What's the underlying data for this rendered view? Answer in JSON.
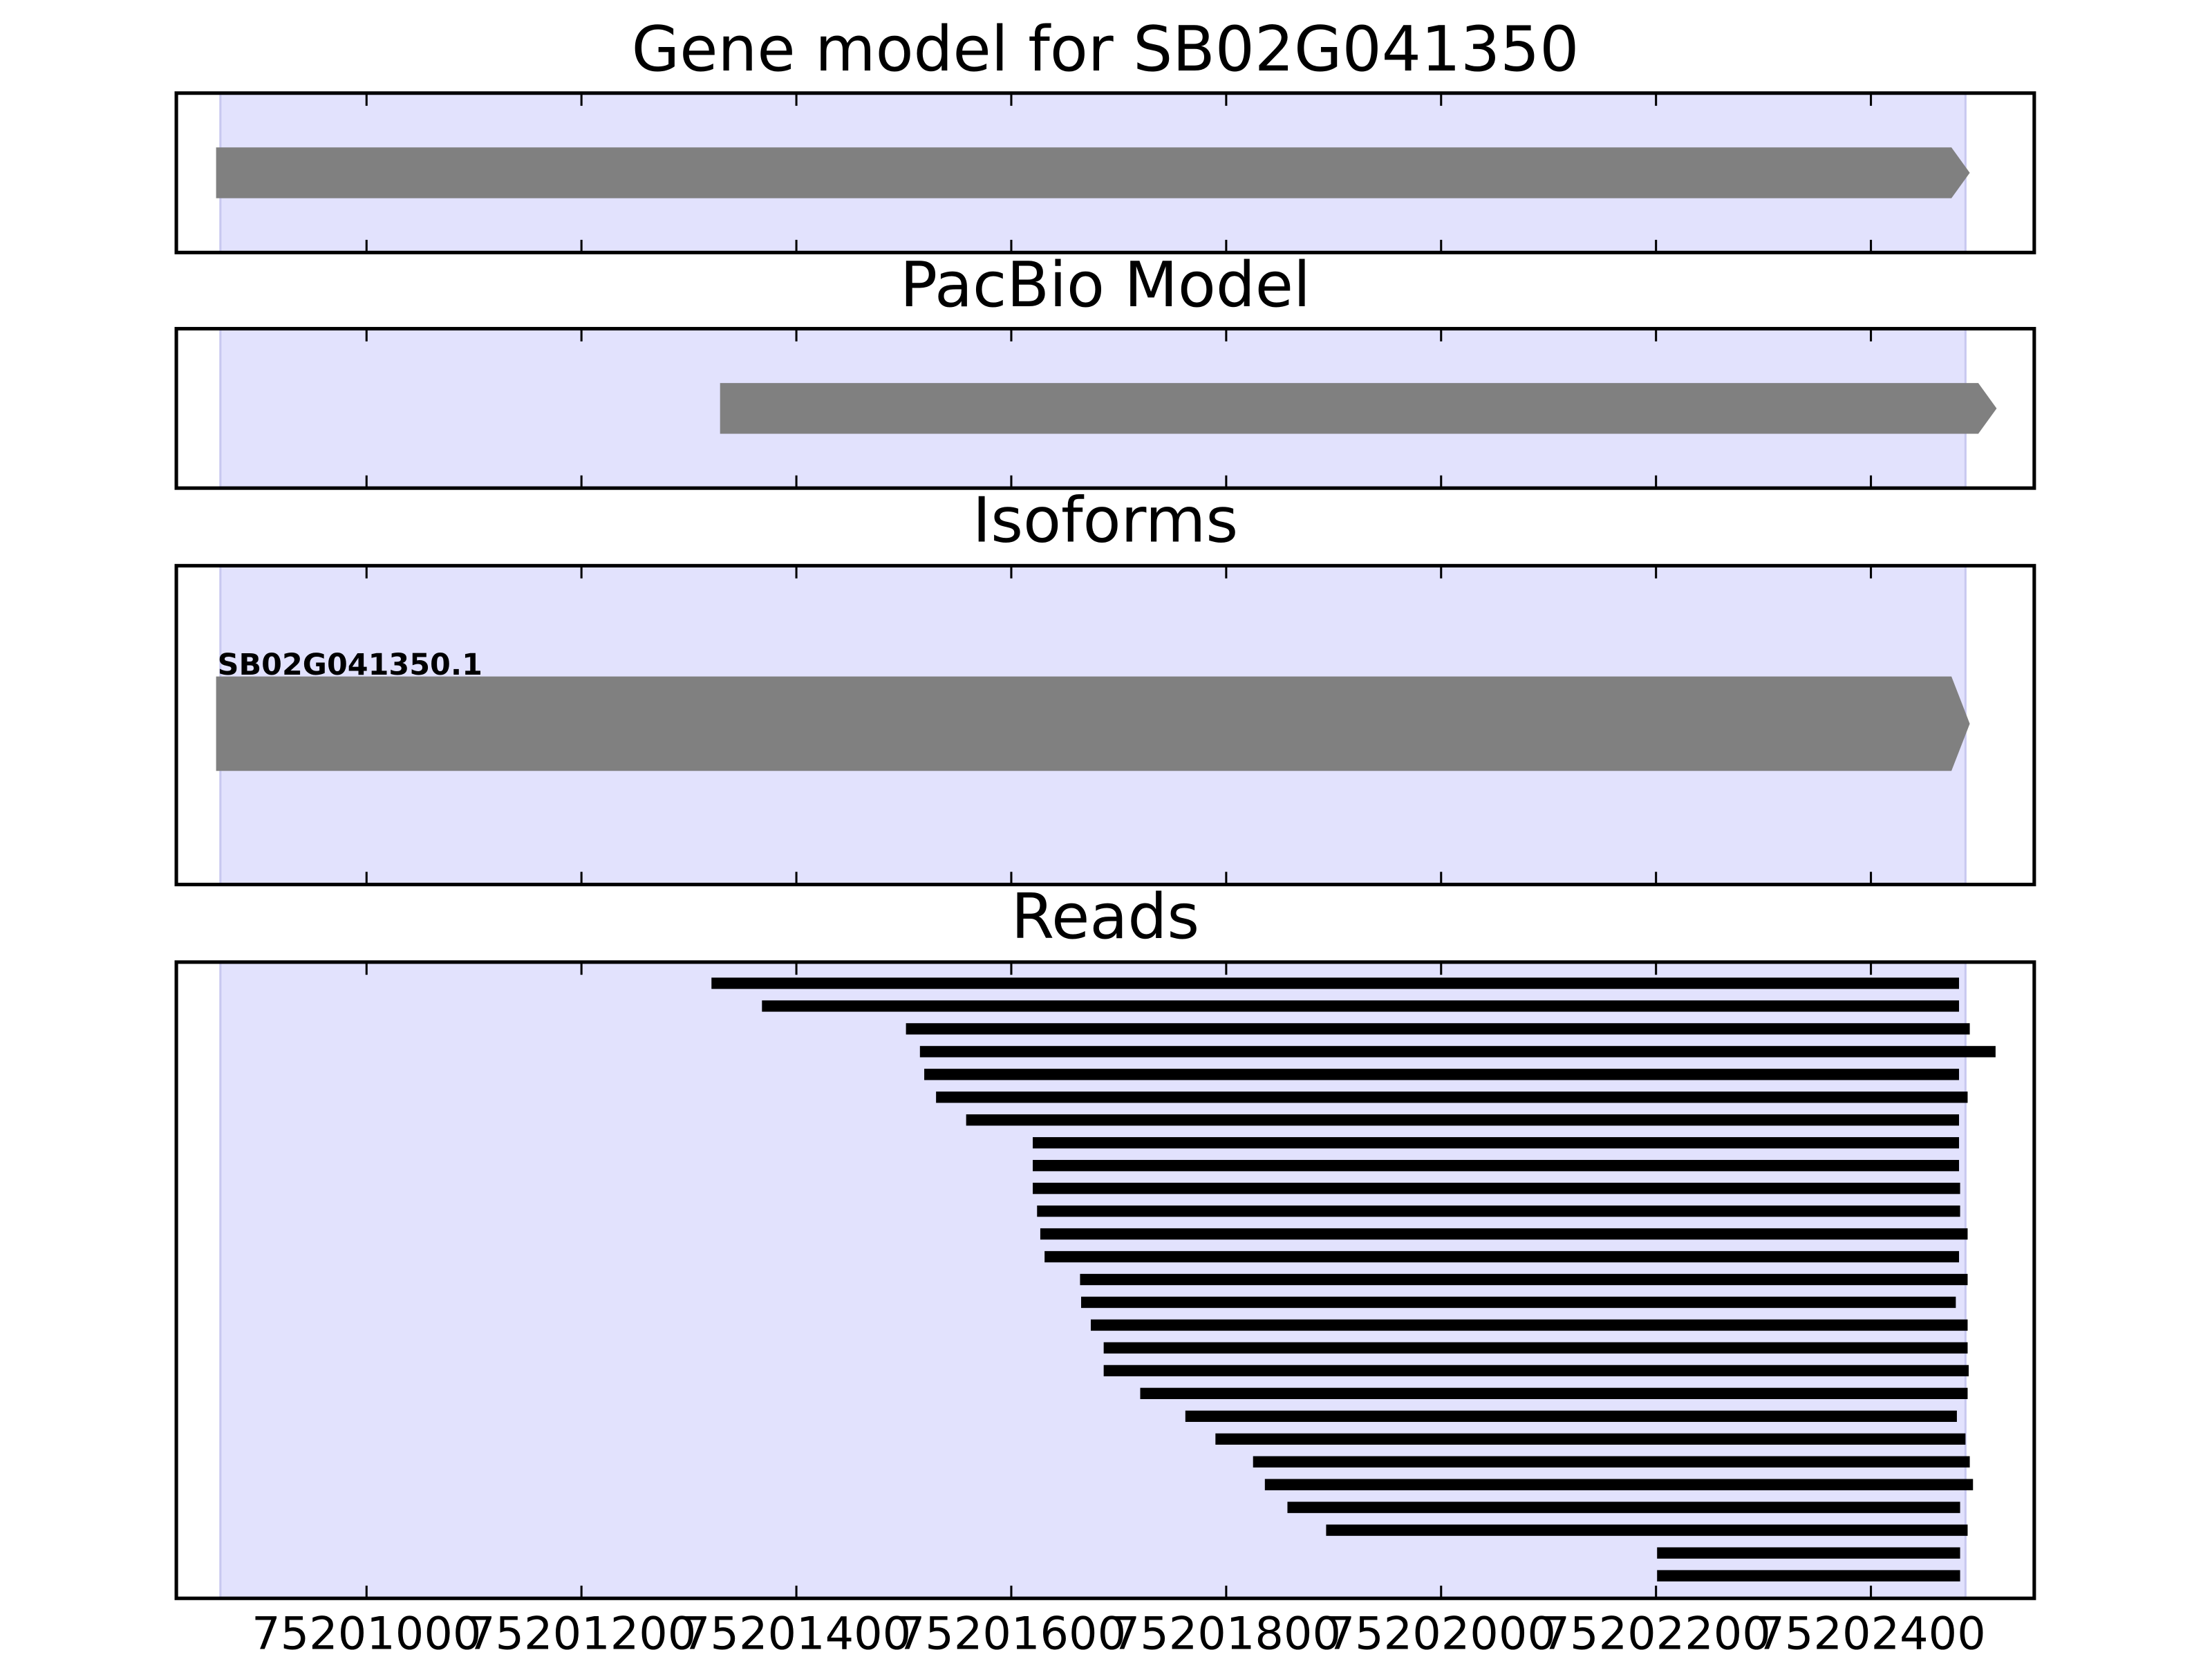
{
  "chart_data": {
    "type": "gene-tracks",
    "xlim": [
      75200823,
      75202552
    ],
    "xticks": [
      75201000,
      75201200,
      75201400,
      75201600,
      75201800,
      75202000,
      75202200,
      75202400
    ],
    "highlight": [
      75200864,
      75202488
    ],
    "panels": [
      {
        "type": "feature",
        "title": "Gene model for SB02G041350",
        "starts": [
          75200860
        ],
        "ends": [
          75202492
        ]
      },
      {
        "type": "feature",
        "title": "PacBio Model",
        "starts": [
          75201329
        ],
        "ends": [
          75202517
        ]
      },
      {
        "type": "feature",
        "title": "Isoforms",
        "labels": [
          "SB02G041350.1"
        ],
        "starts": [
          75200860
        ],
        "ends": [
          75202492
        ]
      },
      {
        "type": "reads",
        "title": "Reads",
        "starts": [
          75201321,
          75201368,
          75201502,
          75201515,
          75201519,
          75201530,
          75201558,
          75201620,
          75201620,
          75201620,
          75201624,
          75201627,
          75201631,
          75201664,
          75201665,
          75201674,
          75201686,
          75201686,
          75201720,
          75201762,
          75201790,
          75201825,
          75201836,
          75201857,
          75201893,
          75202201,
          75202201
        ],
        "ends": [
          75202482,
          75202482,
          75202492,
          75202516,
          75202482,
          75202490,
          75202482,
          75202482,
          75202482,
          75202483,
          75202483,
          75202490,
          75202482,
          75202490,
          75202479,
          75202490,
          75202490,
          75202491,
          75202490,
          75202480,
          75202488,
          75202492,
          75202495,
          75202483,
          75202490,
          75202483,
          75202483
        ]
      }
    ]
  }
}
